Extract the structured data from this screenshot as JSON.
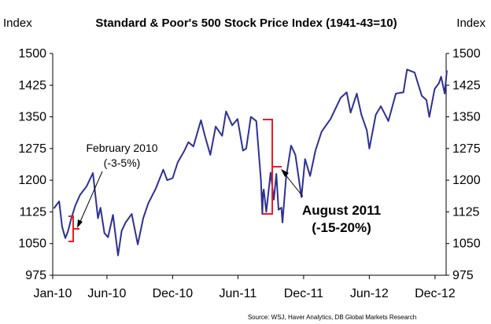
{
  "chart_data": {
    "type": "line",
    "title": "Standard & Poor's 500 Stock Price Index (1941-43=10)",
    "ylabel_left": "Index",
    "ylabel_right": "Index",
    "ylim": [
      975,
      1500
    ],
    "yticks": [
      "975",
      "1050",
      "1125",
      "1200",
      "1275",
      "1350",
      "1425",
      "1500"
    ],
    "xticks": [
      "Jan-10",
      "Jun-10",
      "Dec-10",
      "Jun-11",
      "Dec-11",
      "Jun-12",
      "Dec-12"
    ],
    "x_range": [
      "2010-01",
      "2013-01"
    ],
    "grid": false,
    "line_color": "#2E3192",
    "annotation_color": "#ED1C24",
    "series": [
      {
        "x": [
          "2010-01-04",
          "2010-01-19",
          "2010-01-27",
          "2010-02-05",
          "2010-02-12",
          "2010-02-22",
          "2010-03-05",
          "2010-03-18",
          "2010-04-05",
          "2010-04-23",
          "2010-05-07",
          "2010-05-14",
          "2010-05-25",
          "2010-06-04",
          "2010-06-18",
          "2010-07-02",
          "2010-07-12",
          "2010-07-23",
          "2010-08-09",
          "2010-08-26",
          "2010-09-10",
          "2010-09-24",
          "2010-10-15",
          "2010-11-05",
          "2010-11-16",
          "2010-12-01",
          "2010-12-15",
          "2011-01-03",
          "2011-01-14",
          "2011-01-28",
          "2011-02-18",
          "2011-03-01",
          "2011-03-16",
          "2011-03-31",
          "2011-04-18",
          "2011-04-29",
          "2011-05-16",
          "2011-05-31",
          "2011-06-15",
          "2011-06-24",
          "2011-07-07",
          "2011-07-22",
          "2011-08-04",
          "2011-08-08",
          "2011-08-10",
          "2011-08-12",
          "2011-08-19",
          "2011-08-31",
          "2011-09-09",
          "2011-09-16",
          "2011-09-22",
          "2011-09-30",
          "2011-10-03",
          "2011-10-13",
          "2011-10-27",
          "2011-11-08",
          "2011-11-25",
          "2011-12-05",
          "2011-12-19",
          "2012-01-03",
          "2012-01-20",
          "2012-02-14",
          "2012-03-13",
          "2012-03-30",
          "2012-04-10",
          "2012-04-27",
          "2012-05-10",
          "2012-05-25",
          "2012-06-01",
          "2012-06-19",
          "2012-07-03",
          "2012-07-24",
          "2012-08-14",
          "2012-09-04",
          "2012-09-14",
          "2012-10-05",
          "2012-10-25",
          "2012-11-07",
          "2012-11-15",
          "2012-11-30",
          "2012-12-12",
          "2012-12-18",
          "2012-12-28",
          "2013-01-03"
        ],
        "values": [
          1133,
          1150,
          1090,
          1063,
          1078,
          1110,
          1140,
          1165,
          1185,
          1217,
          1110,
          1135,
          1075,
          1065,
          1118,
          1022,
          1080,
          1100,
          1120,
          1048,
          1110,
          1145,
          1180,
          1225,
          1200,
          1205,
          1242,
          1270,
          1290,
          1280,
          1342,
          1305,
          1260,
          1327,
          1305,
          1363,
          1330,
          1345,
          1270,
          1275,
          1350,
          1340,
          1200,
          1120,
          1170,
          1178,
          1125,
          1218,
          1154,
          1215,
          1130,
          1135,
          1100,
          1205,
          1282,
          1260,
          1160,
          1250,
          1210,
          1270,
          1315,
          1345,
          1395,
          1408,
          1360,
          1405,
          1355,
          1318,
          1275,
          1355,
          1375,
          1340,
          1405,
          1408,
          1462,
          1455,
          1400,
          1390,
          1350,
          1416,
          1430,
          1445,
          1405,
          1460
        ]
      }
    ],
    "annotations": [
      {
        "label": "February 2010",
        "sublabel": "(-3-5%)"
      },
      {
        "label": "August 2011",
        "sublabel": "(-15-20%)"
      }
    ],
    "source": "Source: WSJ, Haver Analytics, DB Global Markets Research"
  }
}
